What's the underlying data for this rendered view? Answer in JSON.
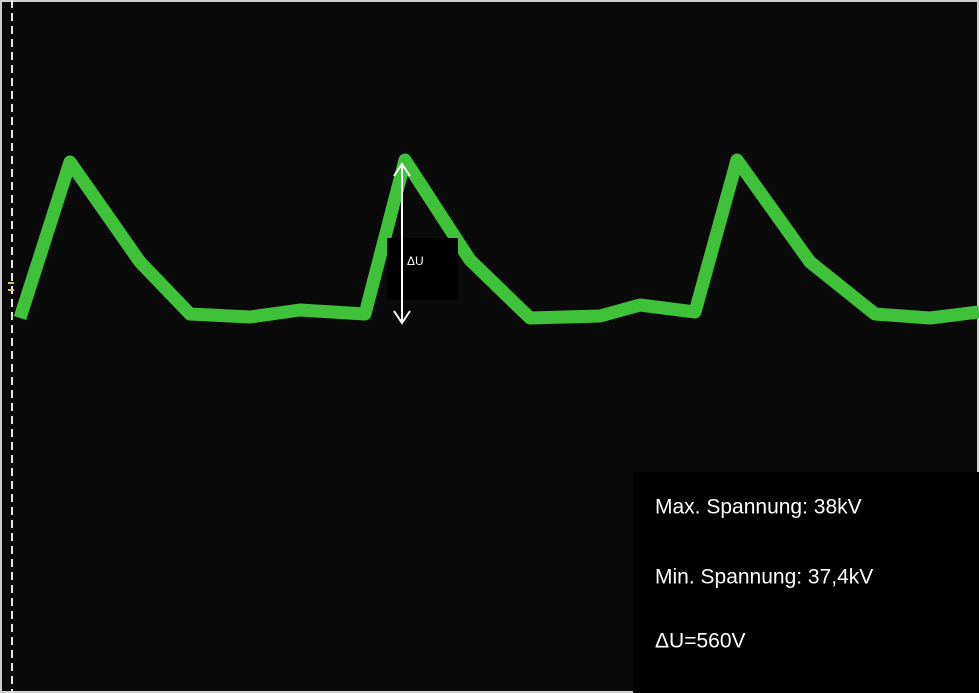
{
  "arrow_label": "ΔU",
  "info": {
    "max": "Max. Spannung: 38kV",
    "min": "Min. Spannung: 37,4kV",
    "delta": "ΔU=560V"
  }
}
